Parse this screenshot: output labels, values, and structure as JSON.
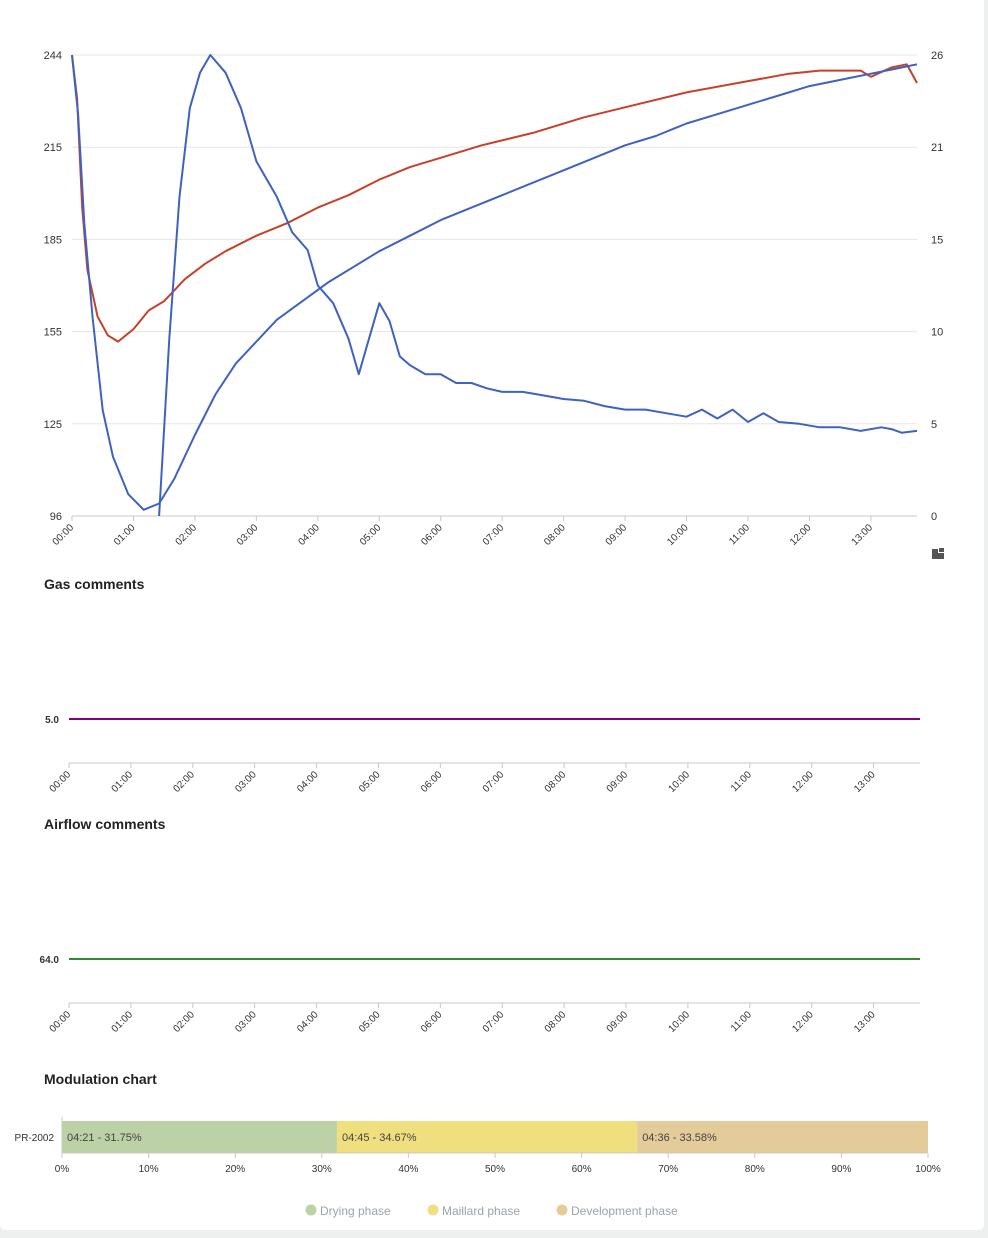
{
  "chart_data": [
    {
      "type": "line",
      "left_axis": {
        "ticks": [
          "244",
          "215",
          "185",
          "155",
          "125",
          "96"
        ],
        "ylim": [
          96,
          244
        ]
      },
      "right_axis": {
        "ticks": [
          "26",
          "21",
          "15",
          "10",
          "5",
          "0"
        ],
        "ylim": [
          0,
          26
        ]
      },
      "x_ticks": [
        "00:00",
        "01:00",
        "02:00",
        "03:00",
        "04:00",
        "05:00",
        "06:00",
        "07:00",
        "08:00",
        "09:00",
        "10:00",
        "11:00",
        "12:00",
        "13:00"
      ],
      "xlim_seconds": [
        0,
        825
      ],
      "grid": true,
      "series": [
        {
          "axis": "left",
          "color": "#c8402a",
          "points": [
            [
              0,
              244
            ],
            [
              5,
              230
            ],
            [
              10,
              195
            ],
            [
              15,
              175
            ],
            [
              25,
              160
            ],
            [
              35,
              154
            ],
            [
              45,
              152
            ],
            [
              60,
              156
            ],
            [
              75,
              162
            ],
            [
              90,
              165
            ],
            [
              110,
              172
            ],
            [
              130,
              177
            ],
            [
              150,
              181
            ],
            [
              180,
              186
            ],
            [
              210,
              190
            ],
            [
              240,
              195
            ],
            [
              270,
              199
            ],
            [
              300,
              204
            ],
            [
              330,
              208
            ],
            [
              360,
              211
            ],
            [
              400,
              215
            ],
            [
              450,
              219
            ],
            [
              500,
              224
            ],
            [
              550,
              228
            ],
            [
              600,
              232
            ],
            [
              650,
              235
            ],
            [
              700,
              238
            ],
            [
              730,
              239
            ],
            [
              770,
              239
            ],
            [
              780,
              237
            ],
            [
              800,
              240
            ],
            [
              815,
              241
            ],
            [
              825,
              235
            ]
          ]
        },
        {
          "axis": "left",
          "color": "#3f62c0",
          "points": [
            [
              0,
              244
            ],
            [
              6,
              225
            ],
            [
              12,
              190
            ],
            [
              20,
              160
            ],
            [
              30,
              130
            ],
            [
              40,
              115
            ],
            [
              55,
              103
            ],
            [
              70,
              98
            ],
            [
              85,
              100
            ],
            [
              100,
              108
            ],
            [
              120,
              122
            ],
            [
              140,
              135
            ],
            [
              160,
              145
            ],
            [
              180,
              152
            ],
            [
              200,
              159
            ],
            [
              225,
              165
            ],
            [
              250,
              171
            ],
            [
              275,
              176
            ],
            [
              300,
              181
            ],
            [
              330,
              186
            ],
            [
              360,
              191
            ],
            [
              390,
              195
            ],
            [
              420,
              199
            ],
            [
              450,
              203
            ],
            [
              480,
              207
            ],
            [
              510,
              211
            ],
            [
              540,
              215
            ],
            [
              570,
              218
            ],
            [
              600,
              222
            ],
            [
              630,
              225
            ],
            [
              660,
              228
            ],
            [
              690,
              231
            ],
            [
              720,
              234
            ],
            [
              750,
              236
            ],
            [
              780,
              238
            ],
            [
              810,
              240
            ],
            [
              825,
              241
            ]
          ]
        },
        {
          "axis": "right",
          "color": "#3f62c0",
          "points": [
            [
              85,
              0
            ],
            [
              95,
              10
            ],
            [
              105,
              18
            ],
            [
              115,
              23
            ],
            [
              125,
              25
            ],
            [
              135,
              26
            ],
            [
              150,
              25
            ],
            [
              165,
              23
            ],
            [
              180,
              20
            ],
            [
              200,
              18
            ],
            [
              215,
              16
            ],
            [
              230,
              15
            ],
            [
              240,
              13
            ],
            [
              255,
              12
            ],
            [
              270,
              10
            ],
            [
              280,
              8
            ],
            [
              290,
              10
            ],
            [
              300,
              12
            ],
            [
              310,
              11
            ],
            [
              320,
              9
            ],
            [
              330,
              8.5
            ],
            [
              345,
              8
            ],
            [
              360,
              8
            ],
            [
              375,
              7.5
            ],
            [
              390,
              7.5
            ],
            [
              405,
              7.2
            ],
            [
              420,
              7
            ],
            [
              440,
              7
            ],
            [
              460,
              6.8
            ],
            [
              480,
              6.6
            ],
            [
              500,
              6.5
            ],
            [
              520,
              6.2
            ],
            [
              540,
              6
            ],
            [
              560,
              6
            ],
            [
              580,
              5.8
            ],
            [
              600,
              5.6
            ],
            [
              615,
              6
            ],
            [
              630,
              5.5
            ],
            [
              645,
              6
            ],
            [
              660,
              5.3
            ],
            [
              675,
              5.8
            ],
            [
              690,
              5.3
            ],
            [
              710,
              5.2
            ],
            [
              730,
              5
            ],
            [
              750,
              5
            ],
            [
              770,
              4.8
            ],
            [
              790,
              5
            ],
            [
              800,
              4.9
            ],
            [
              810,
              4.7
            ],
            [
              825,
              4.8
            ]
          ]
        }
      ]
    },
    {
      "type": "line",
      "title": "Gas comments",
      "y_tick": "5.0",
      "x_ticks": [
        "00:00",
        "01:00",
        "02:00",
        "03:00",
        "04:00",
        "05:00",
        "06:00",
        "07:00",
        "08:00",
        "09:00",
        "10:00",
        "11:00",
        "12:00",
        "13:00"
      ],
      "series": [
        {
          "color": "#800080",
          "points": [
            [
              0,
              5.0
            ],
            [
              825,
              5.0
            ]
          ]
        }
      ]
    },
    {
      "type": "line",
      "title": "Airflow comments",
      "y_tick": "64.0",
      "x_ticks": [
        "00:00",
        "01:00",
        "02:00",
        "03:00",
        "04:00",
        "05:00",
        "06:00",
        "07:00",
        "08:00",
        "09:00",
        "10:00",
        "11:00",
        "12:00",
        "13:00"
      ],
      "series": [
        {
          "color": "#2e8b2e",
          "points": [
            [
              0,
              64.0
            ],
            [
              825,
              64.0
            ]
          ]
        }
      ]
    },
    {
      "type": "bar",
      "title": "Modulation chart",
      "categories": [
        "PR-2002"
      ],
      "x_ticks": [
        "0%",
        "10%",
        "20%",
        "30%",
        "40%",
        "50%",
        "60%",
        "70%",
        "80%",
        "90%",
        "100%"
      ],
      "series": [
        {
          "name": "Drying phase",
          "value": 31.75,
          "label": "04:21 - 31.75%",
          "color": "#bdd1a7"
        },
        {
          "name": "Maillard phase",
          "value": 34.67,
          "label": "04:45 - 34.67%",
          "color": "#f0df7e"
        },
        {
          "name": "Development phase",
          "value": 33.58,
          "label": "04:36 - 33.58%",
          "color": "#e4cb9a"
        }
      ]
    }
  ]
}
